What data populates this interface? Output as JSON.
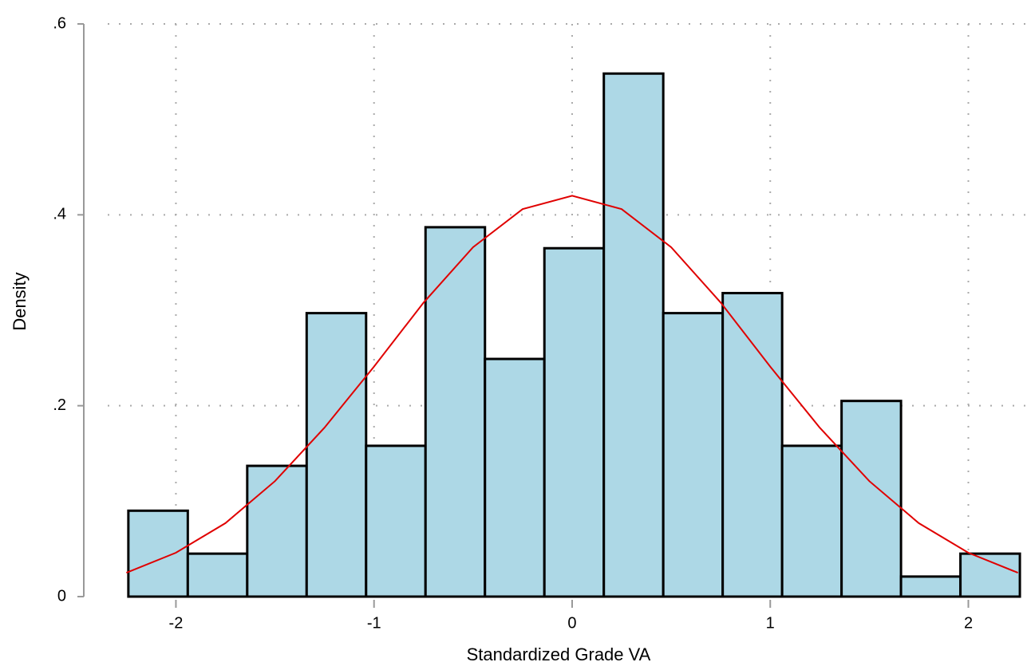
{
  "chart_data": {
    "type": "histogram",
    "x_label": "Standardized Grade VA",
    "y_label": "Density",
    "bins": [
      -2.24,
      -1.94,
      -1.64,
      -1.34,
      -1.04,
      -0.74,
      -0.44,
      -0.14,
      0.16,
      0.46,
      0.76,
      1.06,
      1.36,
      1.66,
      1.96,
      2.26
    ],
    "values": [
      0.09,
      0.045,
      0.137,
      0.297,
      0.158,
      0.387,
      0.249,
      0.365,
      0.548,
      0.297,
      0.318,
      0.158,
      0.205,
      0.021,
      0.045
    ],
    "color": "#add8e6",
    "density_curve": {
      "x": [
        -2.25,
        -2,
        -1.75,
        -1.5,
        -1.25,
        -1,
        -0.75,
        -0.5,
        -0.25,
        0,
        0.25,
        0.5,
        0.75,
        1,
        1.25,
        1.5,
        1.75,
        2,
        2.25
      ],
      "values": [
        0.025,
        0.046,
        0.077,
        0.121,
        0.177,
        0.241,
        0.308,
        0.366,
        0.406,
        0.42,
        0.406,
        0.366,
        0.308,
        0.241,
        0.177,
        0.121,
        0.077,
        0.046,
        0.025
      ],
      "color": "#e00000"
    },
    "xlim": [
      -2.465,
      2.296
    ],
    "ylim": [
      0,
      0.6
    ],
    "xticks": [
      -2,
      -1,
      0,
      1,
      2
    ],
    "yticks": [
      0,
      {
        "value": 0.2,
        "label": ".2"
      },
      {
        "value": 0.4,
        "label": ".4"
      },
      {
        "value": 0.6,
        "label": ".6"
      }
    ],
    "grid": true
  }
}
